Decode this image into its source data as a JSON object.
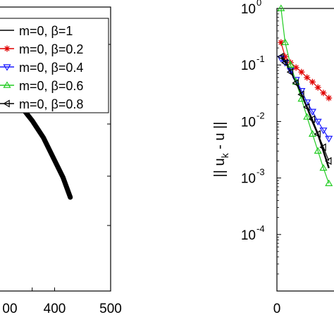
{
  "chart_data": [
    {
      "type": "line",
      "xlabel": "",
      "ylabel": "",
      "xlim": [
        300,
        500
      ],
      "x_ticks": [
        400,
        500
      ],
      "x_tick_labels": [
        "400",
        "500"
      ],
      "legend_position": "top-right",
      "grid": false,
      "series": [
        {
          "name": "m=0, β=1",
          "color": "#000000",
          "marker": "none",
          "x": [
            300,
            320,
            340,
            360,
            380,
            400,
            415,
            428
          ],
          "y": [
            0.72,
            0.69,
            0.65,
            0.6,
            0.54,
            0.46,
            0.4,
            0.33
          ]
        },
        {
          "name": "m=0, β=0.2",
          "color": "#e00000",
          "marker": "star",
          "x": [],
          "y": []
        },
        {
          "name": "m=0, β=0.4",
          "color": "#1a1aff",
          "marker": "triangle-down",
          "x": [],
          "y": []
        },
        {
          "name": "m=0, β=0.6",
          "color": "#22cc22",
          "marker": "triangle-up",
          "x": [],
          "y": []
        },
        {
          "name": "m=0, β=0.8",
          "color": "#000000",
          "marker": "triangle-left",
          "x": [],
          "y": []
        }
      ]
    },
    {
      "type": "line",
      "xlabel": "",
      "ylabel": "|| u_k - u ||",
      "ylabel_parts": [
        "|| u",
        "k",
        " - u ||"
      ],
      "y_scale": "log",
      "ylim": [
        1e-05,
        1
      ],
      "xlim": [
        0,
        10
      ],
      "x_ticks": [
        0
      ],
      "x_tick_labels": [
        "0"
      ],
      "y_ticks": [
        1,
        0.1,
        0.01,
        0.001,
        0.0001
      ],
      "y_tick_labels": [
        {
          "base": "10",
          "exp": "0"
        },
        {
          "base": "10",
          "exp": "-1"
        },
        {
          "base": "10",
          "exp": "-2"
        },
        {
          "base": "10",
          "exp": "-3"
        },
        {
          "base": "10",
          "exp": "-4"
        }
      ],
      "grid": false,
      "series": [
        {
          "name": "m=0, β=1",
          "color": "#000000",
          "marker": "none",
          "x": [
            0.3,
            0.6,
            1.0,
            1.4,
            1.8,
            2.2,
            2.6,
            3.0,
            3.4,
            3.8
          ],
          "y": [
            0.15,
            0.12,
            0.08,
            0.05,
            0.03,
            0.018,
            0.01,
            0.006,
            0.003,
            0.0015
          ]
        },
        {
          "name": "m=0, β=0.2",
          "color": "#e00000",
          "marker": "star",
          "x": [
            0.3,
            0.6,
            1.0,
            1.4,
            1.8,
            2.2,
            2.6,
            3.0,
            3.4,
            3.8
          ],
          "y": [
            0.25,
            0.14,
            0.11,
            0.09,
            0.075,
            0.06,
            0.05,
            0.04,
            0.032,
            0.026
          ]
        },
        {
          "name": "m=0, β=0.4",
          "color": "#1a1aff",
          "marker": "triangle-down",
          "x": [
            0.3,
            0.6,
            1.0,
            1.4,
            1.8,
            2.2,
            2.6,
            3.0,
            3.4,
            3.8
          ],
          "y": [
            0.13,
            0.11,
            0.08,
            0.055,
            0.035,
            0.022,
            0.015,
            0.01,
            0.007,
            0.005
          ]
        },
        {
          "name": "m=0, β=0.6",
          "color": "#22cc22",
          "marker": "triangle-up",
          "x": [
            0.3,
            0.6,
            1.0,
            1.4,
            1.8,
            2.2,
            2.6,
            3.0,
            3.4,
            3.8
          ],
          "y": [
            1.0,
            0.25,
            0.1,
            0.05,
            0.025,
            0.012,
            0.006,
            0.003,
            0.0015,
            0.0008
          ]
        },
        {
          "name": "m=0, β=0.8",
          "color": "#000000",
          "marker": "triangle-left",
          "x": [
            0.3,
            0.6,
            1.0,
            1.4,
            1.8,
            2.2,
            2.6,
            3.0,
            3.4,
            3.8
          ],
          "y": [
            0.14,
            0.11,
            0.075,
            0.048,
            0.03,
            0.018,
            0.011,
            0.006,
            0.0035,
            0.002
          ]
        }
      ]
    }
  ]
}
